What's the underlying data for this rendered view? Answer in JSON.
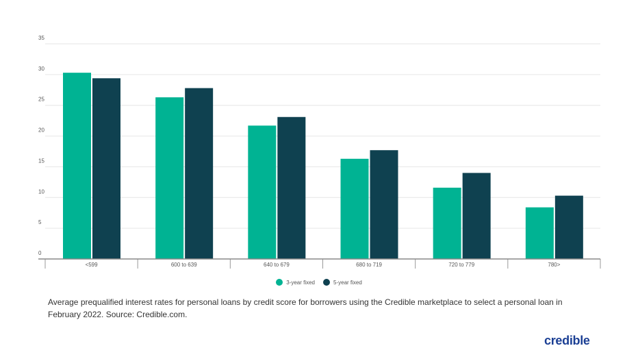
{
  "chart_data": {
    "type": "bar",
    "title": "",
    "xlabel": "",
    "ylabel": "",
    "categories": [
      "<599",
      "600 to 639",
      "640 to 679",
      "680 to 719",
      "720 to 779",
      "780>"
    ],
    "series": [
      {
        "name": "3-year fixed",
        "color": "#00b393",
        "values": [
          30.3,
          26.3,
          21.7,
          16.3,
          11.6,
          8.4
        ]
      },
      {
        "name": "5-year fixed",
        "color": "#0f4150",
        "values": [
          29.4,
          27.8,
          23.1,
          17.7,
          14.0,
          10.3
        ]
      }
    ],
    "ylim": [
      0,
      35
    ],
    "yticks": [
      "0",
      "5",
      "10",
      "15",
      "20",
      "25",
      "30",
      "35"
    ],
    "grid": true,
    "legend_position": "bottom"
  },
  "caption": "Average prequalified interest rates for personal loans by credit score for borrowers using the Credible marketplace to select a personal loan in February 2022. Source: Credible.com.",
  "logo": "credible"
}
